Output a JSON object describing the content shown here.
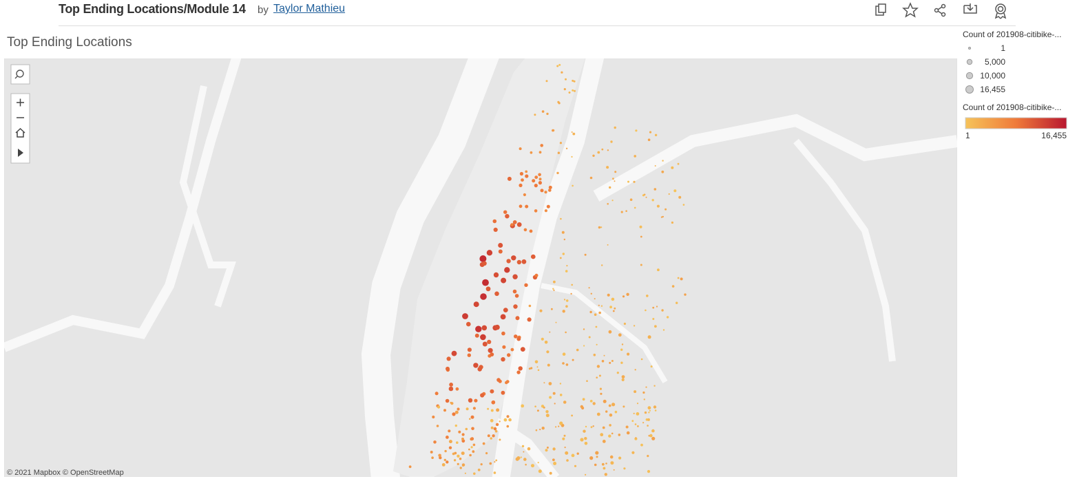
{
  "header": {
    "title": "Top Ending Locations/Module 14",
    "by": "by",
    "author": "Taylor Mathieu"
  },
  "sheet_title": "Top Ending Locations",
  "legend": {
    "size": {
      "title": "Count of 201908-citibike-...",
      "items": [
        1,
        {
          "value": 5000,
          "label": "5,000"
        },
        {
          "value": 10000,
          "label": "10,000"
        },
        {
          "value": 16455,
          "label": "16,455"
        }
      ]
    },
    "color": {
      "title": "Count of 201908-citibike-...",
      "min": 1,
      "max": {
        "value": 16455,
        "label": "16,455"
      },
      "colors": [
        "#f6c35a",
        "#ef7a3a",
        "#b8172f"
      ]
    }
  },
  "attribution": "© 2021 Mapbox  © OpenStreetMap"
}
